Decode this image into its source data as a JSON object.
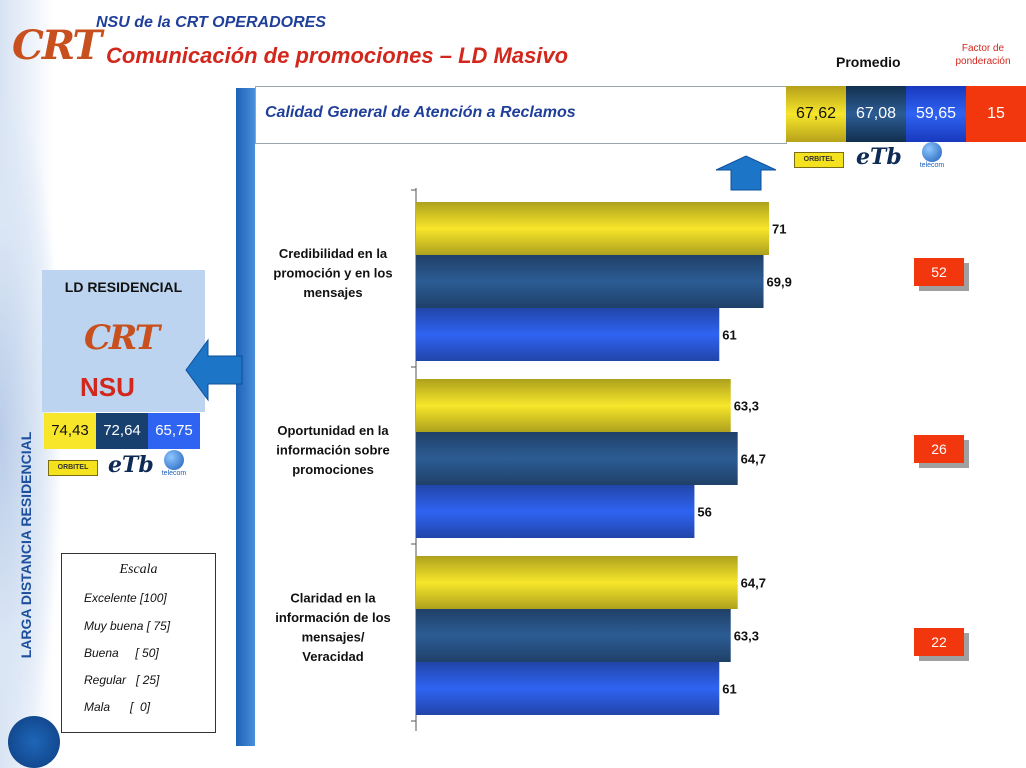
{
  "header": {
    "logo_text": "CRT",
    "subtitle": "NSU de la CRT  OPERADORES",
    "title": "Comunicación de promociones – LD Masivo",
    "promedio_label": "Promedio",
    "factor_label": "Factor de ponderación"
  },
  "side_title": "LARGA DISTANCIA RESIDENCIAL",
  "summary": {
    "label": "Calidad General de Atención a Reclamos",
    "orbitel": "67,62",
    "etb": "67,08",
    "telecom": "59,65",
    "factor": "15"
  },
  "residencial": {
    "label": "LD RESIDENCIAL",
    "logo_crt": "CRT",
    "logo_nsu": "NSU",
    "orbitel": "74,43",
    "etb": "72,64",
    "telecom": "65,75"
  },
  "operator_logos": {
    "orbitel": "ORBITEL",
    "etb": "eTb",
    "telecom": "telecom"
  },
  "escala": {
    "title": "Escala",
    "items": [
      "Excelente [100]",
      "Muy buena [ 75]",
      "Buena     [ 50]",
      "Regular   [ 25]",
      "Mala      [  0]"
    ]
  },
  "weights": [
    "52",
    "26",
    "22"
  ],
  "colors": {
    "orbitel": "#f7e62a",
    "etb": "#2c5c94",
    "telecom": "#2f63f2",
    "factor": "#f2360d",
    "title_red": "#d2271d",
    "title_blue": "#1f3f9a"
  },
  "chart_data": {
    "type": "bar",
    "orientation": "horizontal",
    "categories": [
      [
        "Credibilidad en la",
        "promoción y en los",
        "mensajes"
      ],
      [
        "Oportunidad en la",
        "información sobre",
        "promociones"
      ],
      [
        "Claridad en la",
        "información de los",
        "mensajes/",
        "Veracidad"
      ]
    ],
    "series": [
      {
        "values": [
          71,
          63.3,
          64.7
        ],
        "labels": [
          "71",
          "63,3",
          "64,7"
        ],
        "color": "#f7e62a"
      },
      {
        "values": [
          69.9,
          64.7,
          63.3
        ],
        "labels": [
          "69,9",
          "64,7",
          "63,3"
        ],
        "color": "#2c5c94"
      },
      {
        "values": [
          61,
          56,
          61
        ],
        "labels": [
          "61",
          "56",
          "61"
        ],
        "color": "#2f63f2"
      }
    ],
    "xlim": [
      0,
      100
    ],
    "grid": false,
    "legend": "none"
  }
}
